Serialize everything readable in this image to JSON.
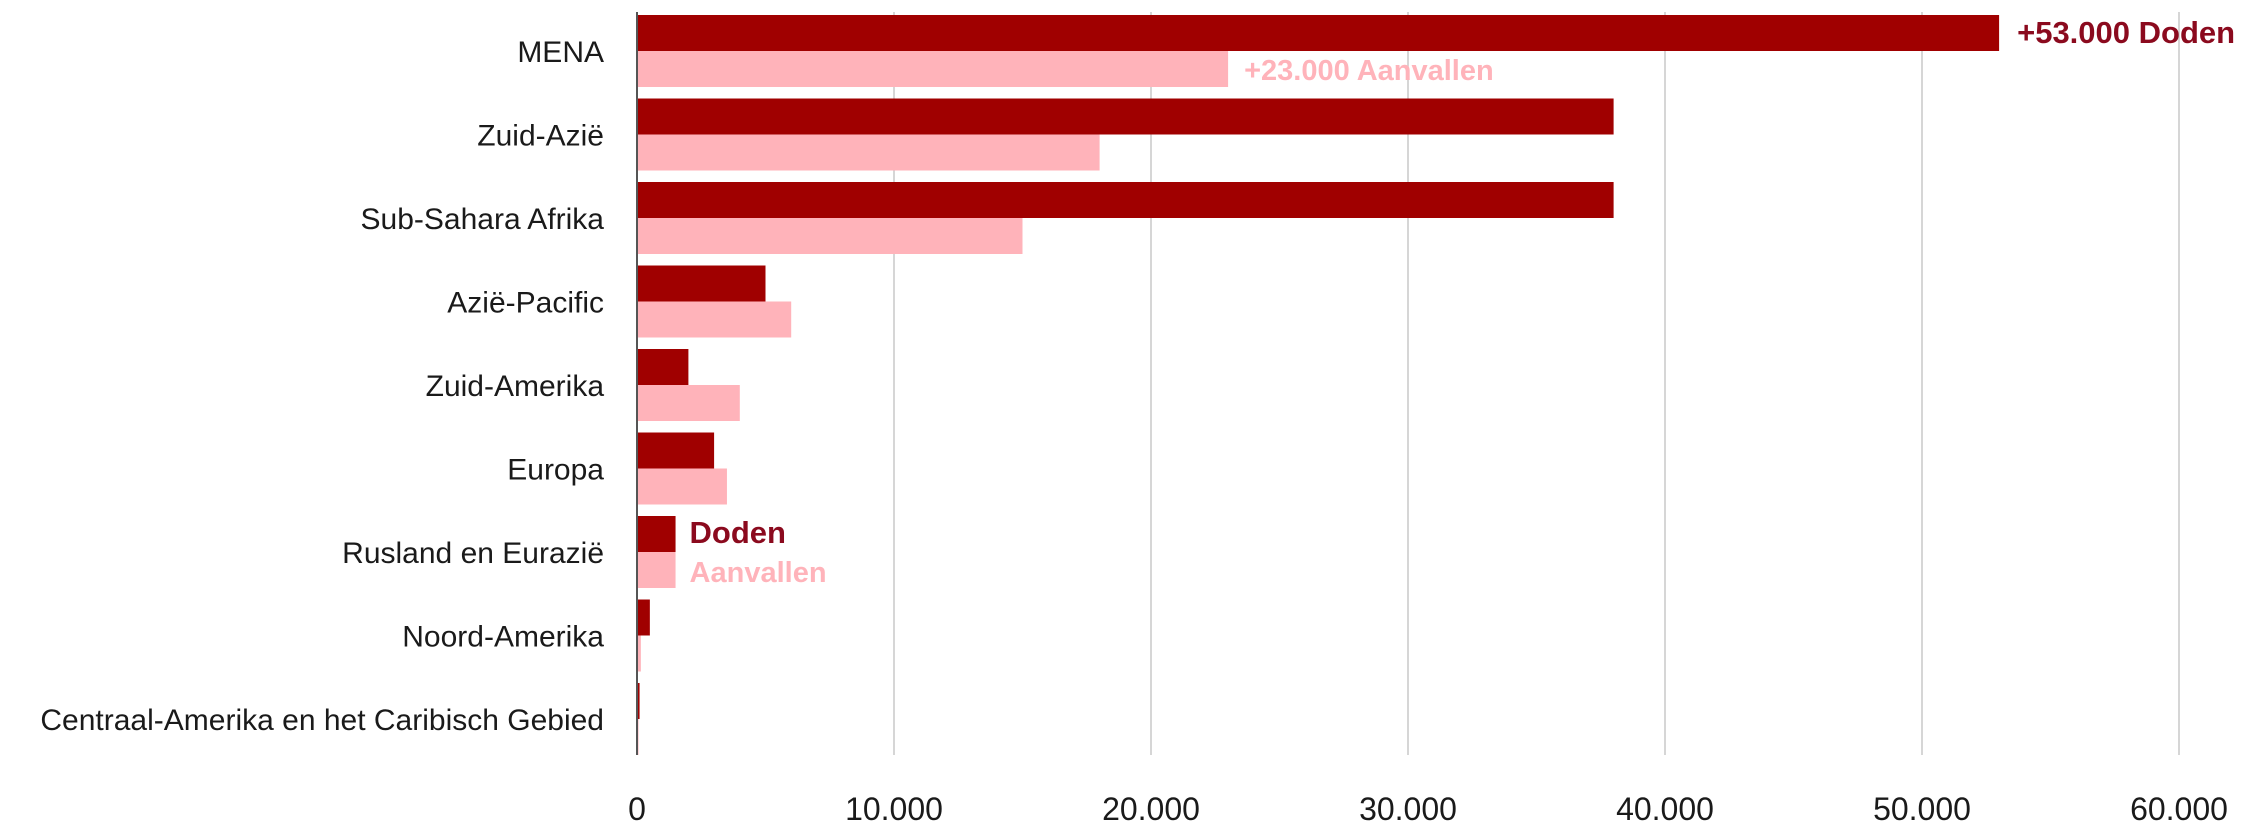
{
  "chart_data": {
    "type": "bar",
    "orientation": "horizontal",
    "categories": [
      "MENA",
      "Zuid-Azië",
      "Sub-Sahara Afrika",
      "Azië-Pacific",
      "Zuid-Amerika",
      "Europa",
      "Rusland en Eurazië",
      "Noord-Amerika",
      "Centraal-Amerika en het Caribisch Gebied"
    ],
    "series": [
      {
        "name": "Doden",
        "color": "#a00000",
        "values": [
          53000,
          38000,
          38000,
          5000,
          2000,
          3000,
          1500,
          500,
          100
        ]
      },
      {
        "name": "Aanvallen",
        "color": "#ffb3ba",
        "values": [
          23000,
          18000,
          15000,
          6000,
          4000,
          3500,
          1500,
          150,
          50
        ]
      }
    ],
    "xlim": [
      0,
      60000
    ],
    "x_ticks": [
      0,
      10000,
      20000,
      30000,
      40000,
      50000,
      60000
    ],
    "x_tick_labels": [
      "0",
      "10.000",
      "20.000",
      "30.000",
      "40.000",
      "50.000",
      "60.000"
    ],
    "grid": "vertical",
    "annotations": {
      "doden_total": "+53.000 Doden",
      "aanvallen_total": "+23.000 Aanvallen",
      "legend_doden": "Doden",
      "legend_aanvallen": "Aanvallen"
    },
    "annotation_colors": {
      "doden": "#8b0a1e",
      "aanvallen": "#ffb3ba"
    }
  }
}
